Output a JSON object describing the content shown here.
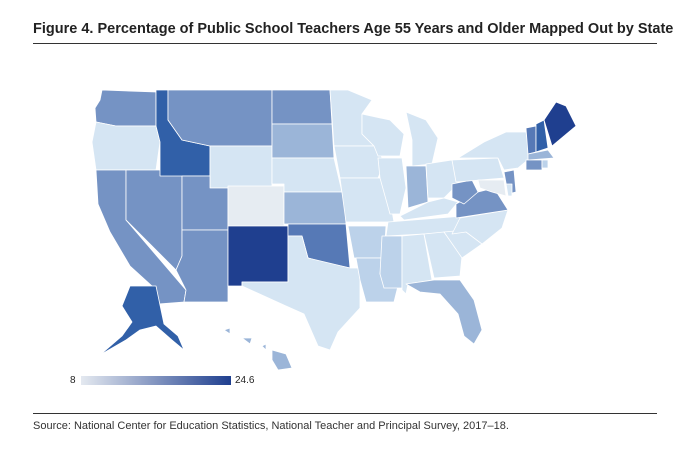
{
  "figure": {
    "title": "Figure 4. Percentage of Public School Teachers Age 55 Years and Older Mapped Out by State",
    "source": "Source: National Center for Education Statistics, National Teacher and Principal Survey, 2017–18."
  },
  "legend": {
    "min": "8",
    "max": "24.6",
    "color_low": "#e4e9f0",
    "color_high": "#1f3f8f"
  },
  "colors": {
    "very_dark": "#1f3f8f",
    "dark": "#3160a8",
    "medium_dark": "#5679b6",
    "medium": "#7593c4",
    "medium_light": "#9bb5d8",
    "light": "#bcd2ea",
    "very_light": "#d5e5f3",
    "pale": "#e6ecf2"
  },
  "states": [
    {
      "id": "WA",
      "shade": "medium"
    },
    {
      "id": "OR",
      "shade": "very_light"
    },
    {
      "id": "CA",
      "shade": "medium"
    },
    {
      "id": "NV",
      "shade": "medium"
    },
    {
      "id": "ID",
      "shade": "dark"
    },
    {
      "id": "MT",
      "shade": "medium"
    },
    {
      "id": "WY",
      "shade": "very_light"
    },
    {
      "id": "UT",
      "shade": "medium"
    },
    {
      "id": "AZ",
      "shade": "medium"
    },
    {
      "id": "CO",
      "shade": "pale"
    },
    {
      "id": "NM",
      "shade": "very_dark"
    },
    {
      "id": "ND",
      "shade": "medium"
    },
    {
      "id": "SD",
      "shade": "medium_light"
    },
    {
      "id": "NE",
      "shade": "very_light"
    },
    {
      "id": "KS",
      "shade": "medium_light"
    },
    {
      "id": "OK",
      "shade": "medium_dark"
    },
    {
      "id": "TX",
      "shade": "very_light"
    },
    {
      "id": "MN",
      "shade": "very_light"
    },
    {
      "id": "IA",
      "shade": "very_light"
    },
    {
      "id": "MO",
      "shade": "very_light"
    },
    {
      "id": "AR",
      "shade": "light"
    },
    {
      "id": "LA",
      "shade": "light"
    },
    {
      "id": "WI",
      "shade": "very_light"
    },
    {
      "id": "IL",
      "shade": "very_light"
    },
    {
      "id": "MI",
      "shade": "very_light"
    },
    {
      "id": "IN",
      "shade": "medium_light"
    },
    {
      "id": "OH",
      "shade": "very_light"
    },
    {
      "id": "KY",
      "shade": "very_light"
    },
    {
      "id": "TN",
      "shade": "very_light"
    },
    {
      "id": "MS",
      "shade": "light"
    },
    {
      "id": "AL",
      "shade": "very_light"
    },
    {
      "id": "GA",
      "shade": "very_light"
    },
    {
      "id": "FL",
      "shade": "medium_light"
    },
    {
      "id": "SC",
      "shade": "very_light"
    },
    {
      "id": "NC",
      "shade": "very_light"
    },
    {
      "id": "VA",
      "shade": "medium"
    },
    {
      "id": "WV",
      "shade": "medium"
    },
    {
      "id": "PA",
      "shade": "very_light"
    },
    {
      "id": "NY",
      "shade": "very_light"
    },
    {
      "id": "NJ",
      "shade": "medium"
    },
    {
      "id": "DE",
      "shade": "very_light"
    },
    {
      "id": "MD",
      "shade": "pale"
    },
    {
      "id": "VT",
      "shade": "medium_dark"
    },
    {
      "id": "NH",
      "shade": "dark"
    },
    {
      "id": "ME",
      "shade": "very_dark"
    },
    {
      "id": "MA",
      "shade": "medium_light"
    },
    {
      "id": "CT",
      "shade": "medium"
    },
    {
      "id": "RI",
      "shade": "light"
    },
    {
      "id": "AK",
      "shade": "dark"
    },
    {
      "id": "HI",
      "shade": "medium_light"
    }
  ]
}
